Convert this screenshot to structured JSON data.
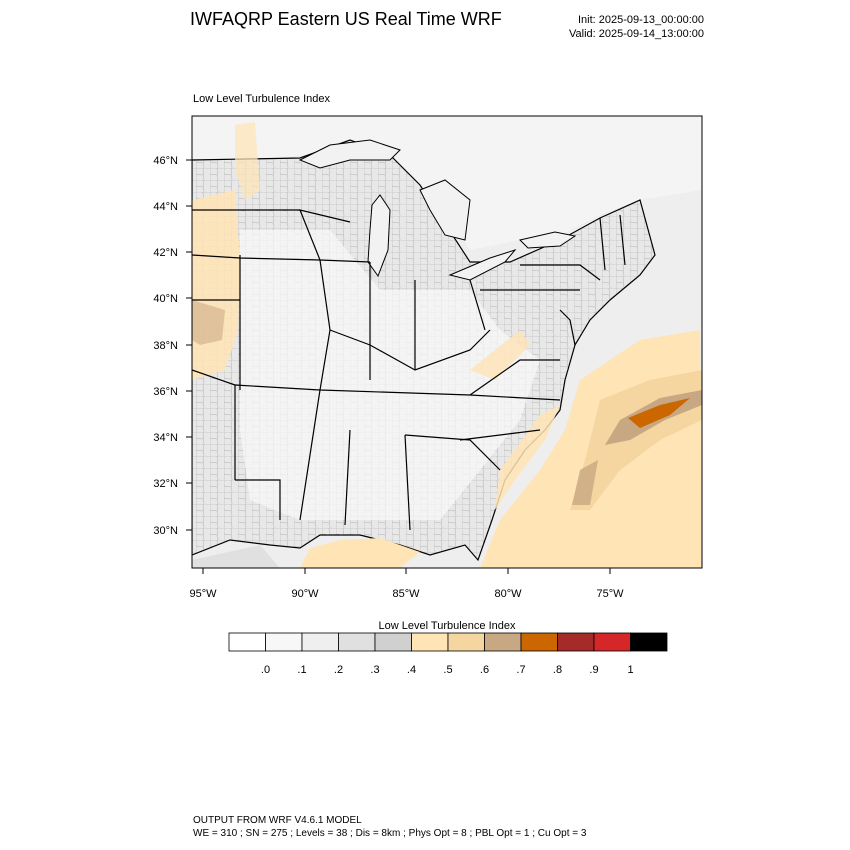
{
  "header": {
    "title": "IWFAQRP Eastern US Real Time WRF",
    "init": "Init: 2025-09-13_00:00:00",
    "valid": "Valid: 2025-09-14_13:00:00"
  },
  "map": {
    "field_title": "Low Level Turbulence Index",
    "lat_labels": [
      "46°N",
      "44°N",
      "42°N",
      "40°N",
      "38°N",
      "36°N",
      "34°N",
      "32°N",
      "30°N"
    ],
    "lon_labels": [
      "95°W",
      "90°W",
      "85°W",
      "80°W",
      "75°W"
    ],
    "colors": {
      "land_light": "#e6e6e6",
      "water": "#f2f2f2",
      "level_05": "#ffe4b5",
      "level_06": "#f5d5a0",
      "level_07": "#c8a882",
      "level_08": "#cc6600"
    }
  },
  "colorbar": {
    "title": "Low Level Turbulence Index",
    "tick_labels": [
      ".0",
      ".1",
      ".2",
      ".3",
      ".4",
      ".5",
      ".6",
      ".7",
      ".8",
      ".9",
      "1"
    ],
    "colors": [
      "#ffffff",
      "#f7f7f7",
      "#efefef",
      "#e0e0e0",
      "#d0d0d0",
      "#ffe4b5",
      "#f5d5a0",
      "#c8a882",
      "#cc6600",
      "#a52a2a",
      "#d62728",
      "#000000"
    ]
  },
  "footer": {
    "line1": "OUTPUT FROM WRF V4.6.1 MODEL",
    "line2": "WE = 310 ; SN = 275 ; Levels = 38 ; Dis = 8km ; Phys Opt = 8 ; PBL Opt = 1 ; Cu Opt = 3"
  }
}
